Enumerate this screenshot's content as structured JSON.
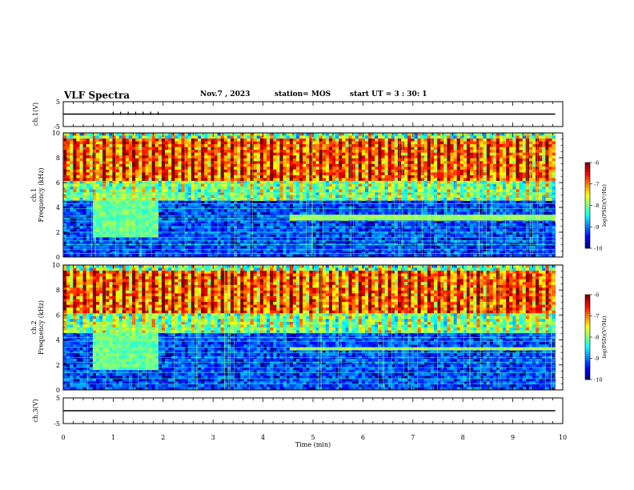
{
  "header": {
    "title": "VLF Spectra",
    "date": "Nov.7 , 2023",
    "station": "station= MOS",
    "start": "start UT = 3 : 30: 1"
  },
  "chart_data": [
    {
      "type": "line",
      "id": "ch1-waveform",
      "ylabel": "ch.1(V)",
      "ylim": [
        -5,
        5
      ],
      "yticks": [
        "5",
        "-5"
      ],
      "xlim": [
        0,
        10
      ],
      "series": [
        {
          "values": [
            0,
            0
          ],
          "x": [
            0,
            9.85
          ]
        }
      ],
      "markers_x": [
        1.0,
        1.15,
        1.3,
        1.45,
        1.6,
        1.75,
        1.9
      ]
    },
    {
      "type": "heatmap",
      "id": "ch1-spectrogram",
      "ylabel_lines": [
        "ch.1",
        "Frequency (kHz)"
      ],
      "ylim": [
        0,
        10
      ],
      "yticks": [
        "0",
        "2",
        "4",
        "6",
        "8",
        "10"
      ],
      "xlim": [
        0,
        10
      ],
      "data_end_min": 9.85,
      "interference_lines_khz": [
        0.3,
        0.6,
        1.0,
        1.3,
        1.6,
        2.0,
        2.4,
        2.9,
        3.1,
        3.3,
        3.9,
        4.3,
        4.6,
        4.9,
        5.2,
        5.6,
        5.9
      ],
      "strong_band_khz": [
        2.9,
        3.4
      ],
      "burst_interval_min": [
        0.55,
        1.85
      ]
    },
    {
      "type": "heatmap",
      "id": "ch2-spectrogram",
      "ylabel_lines": [
        "ch.2",
        "Frequency (kHz)"
      ],
      "ylim": [
        0,
        10
      ],
      "yticks": [
        "0",
        "2",
        "4",
        "6",
        "8",
        "10"
      ],
      "xlim": [
        0,
        10
      ],
      "data_end_min": 9.85,
      "interference_lines_khz": [
        0.5,
        0.9,
        1.4,
        1.8,
        2.2,
        2.6,
        3.0,
        3.4,
        3.9,
        4.2,
        4.6,
        5.0
      ],
      "strong_band_khz": [
        3.2,
        3.4
      ],
      "burst_interval_min": [
        0.55,
        1.85
      ]
    },
    {
      "type": "line",
      "id": "ch3-waveform",
      "ylabel": "ch.3(V)",
      "ylim": [
        -5,
        5
      ],
      "yticks": [
        "5",
        "-5"
      ],
      "xlim": [
        0,
        10
      ],
      "xlabel": "Time  (min)",
      "xticks": [
        "0",
        "1",
        "2",
        "3",
        "4",
        "5",
        "6",
        "7",
        "8",
        "9",
        "10"
      ],
      "series": [
        {
          "values": [
            0,
            0
          ],
          "x": [
            0,
            9.85
          ]
        }
      ]
    }
  ],
  "colorbars": [
    {
      "label": "log(PSD)(V²/Hz)",
      "ticks": [
        "-6",
        "-7",
        "-8",
        "-9",
        "-10"
      ],
      "range": [
        -10,
        -6
      ]
    },
    {
      "label": "log(PSD)(V²/Hz)",
      "ticks": [
        "-6",
        "-7",
        "-8",
        "-9",
        "-10"
      ],
      "range": [
        -10,
        -6
      ]
    }
  ],
  "colors": {
    "low": "#00007f",
    "mid": "#00ff80",
    "high": "#ff0000"
  }
}
